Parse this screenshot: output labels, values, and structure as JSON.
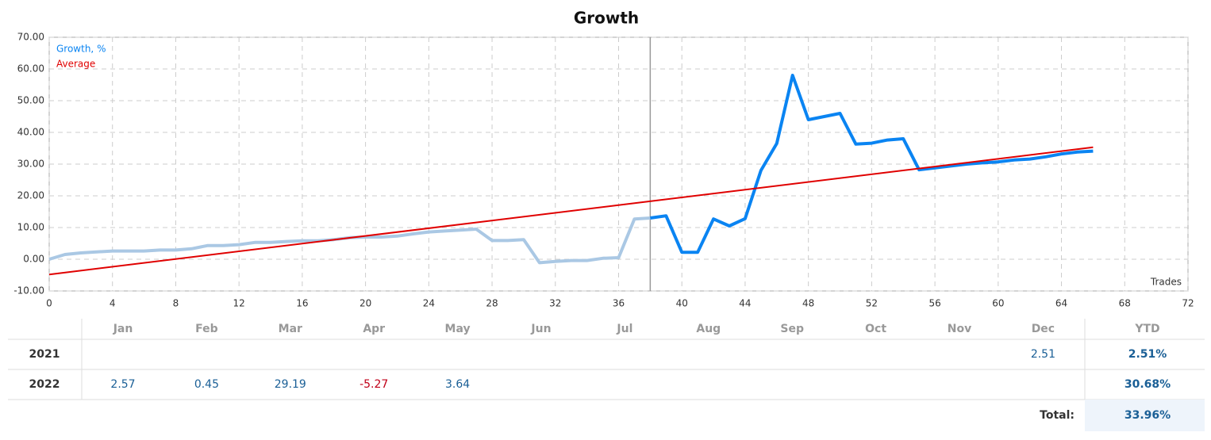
{
  "chart_data": {
    "type": "line",
    "title": "Growth",
    "x_label": "Trades",
    "xlim": [
      0,
      72
    ],
    "xticks": [
      0,
      4,
      8,
      12,
      16,
      20,
      24,
      28,
      32,
      36,
      40,
      44,
      48,
      52,
      56,
      60,
      64,
      68,
      72
    ],
    "ylim": [
      -10,
      70
    ],
    "yticks": [
      {
        "value": -10,
        "label": "-10.00"
      },
      {
        "value": 0,
        "label": "0.00"
      },
      {
        "value": 10,
        "label": "10.00"
      },
      {
        "value": 20,
        "label": "20.00"
      },
      {
        "value": 30,
        "label": "30.00"
      },
      {
        "value": 40,
        "label": "40.00"
      },
      {
        "value": 50,
        "label": "50.00"
      },
      {
        "value": 60,
        "label": "60.00"
      },
      {
        "value": 70,
        "label": "70.00"
      }
    ],
    "grid": true,
    "legend": "top-left",
    "marker_x": 38,
    "series": [
      {
        "name": "Growth, %",
        "color": "#0a84f2",
        "past_color": "#aac8e4",
        "x": [
          0,
          1,
          2,
          3,
          4,
          5,
          6,
          7,
          8,
          9,
          10,
          11,
          12,
          13,
          14,
          15,
          16,
          17,
          18,
          19,
          20,
          21,
          22,
          23,
          24,
          25,
          26,
          27,
          28,
          29,
          30,
          31,
          32,
          33,
          34,
          35,
          36,
          37,
          38,
          39,
          40,
          41,
          42,
          43,
          44,
          45,
          46,
          47,
          48,
          49,
          50,
          51,
          52,
          53,
          54,
          55,
          56,
          57,
          58,
          59,
          60,
          61,
          62,
          63,
          64,
          65,
          66
        ],
        "values": [
          0,
          1.5,
          2,
          2.3,
          2.6,
          2.6,
          2.6,
          2.9,
          2.9,
          3.3,
          4.3,
          4.3,
          4.6,
          5.3,
          5.3,
          5.6,
          5.8,
          5.8,
          6.2,
          6.8,
          7,
          7,
          7.3,
          8,
          8.6,
          8.9,
          9.2,
          9.5,
          5.9,
          5.9,
          6.2,
          -1.1,
          -0.7,
          -0.4,
          -0.4,
          0.3,
          0.5,
          12.7,
          13,
          13.7,
          2.2,
          2.2,
          12.7,
          10.5,
          12.8,
          28,
          36.5,
          58,
          44,
          45,
          46,
          36.3,
          36.6,
          37.6,
          38,
          28.2,
          28.8,
          29.4,
          30,
          30.4,
          30.7,
          31.3,
          31.6,
          32.3,
          33.2,
          33.8,
          34.1
        ]
      },
      {
        "name": "Average",
        "color": "#e00000",
        "x": [
          0,
          66
        ],
        "values": [
          -4.8,
          35.3
        ]
      }
    ]
  },
  "table": {
    "columns": [
      "Jan",
      "Feb",
      "Mar",
      "Apr",
      "May",
      "Jun",
      "Jul",
      "Aug",
      "Sep",
      "Oct",
      "Nov",
      "Dec",
      "YTD"
    ],
    "rows": [
      {
        "year": "2021",
        "months": [
          null,
          null,
          null,
          null,
          null,
          null,
          null,
          null,
          null,
          null,
          null,
          2.51
        ],
        "ytd": "2.51%"
      },
      {
        "year": "2022",
        "months": [
          2.57,
          0.45,
          29.19,
          -5.27,
          3.64,
          null,
          null,
          null,
          null,
          null,
          null,
          null
        ],
        "ytd": "30.68%"
      }
    ],
    "total_label": "Total:",
    "total": "33.96%"
  }
}
